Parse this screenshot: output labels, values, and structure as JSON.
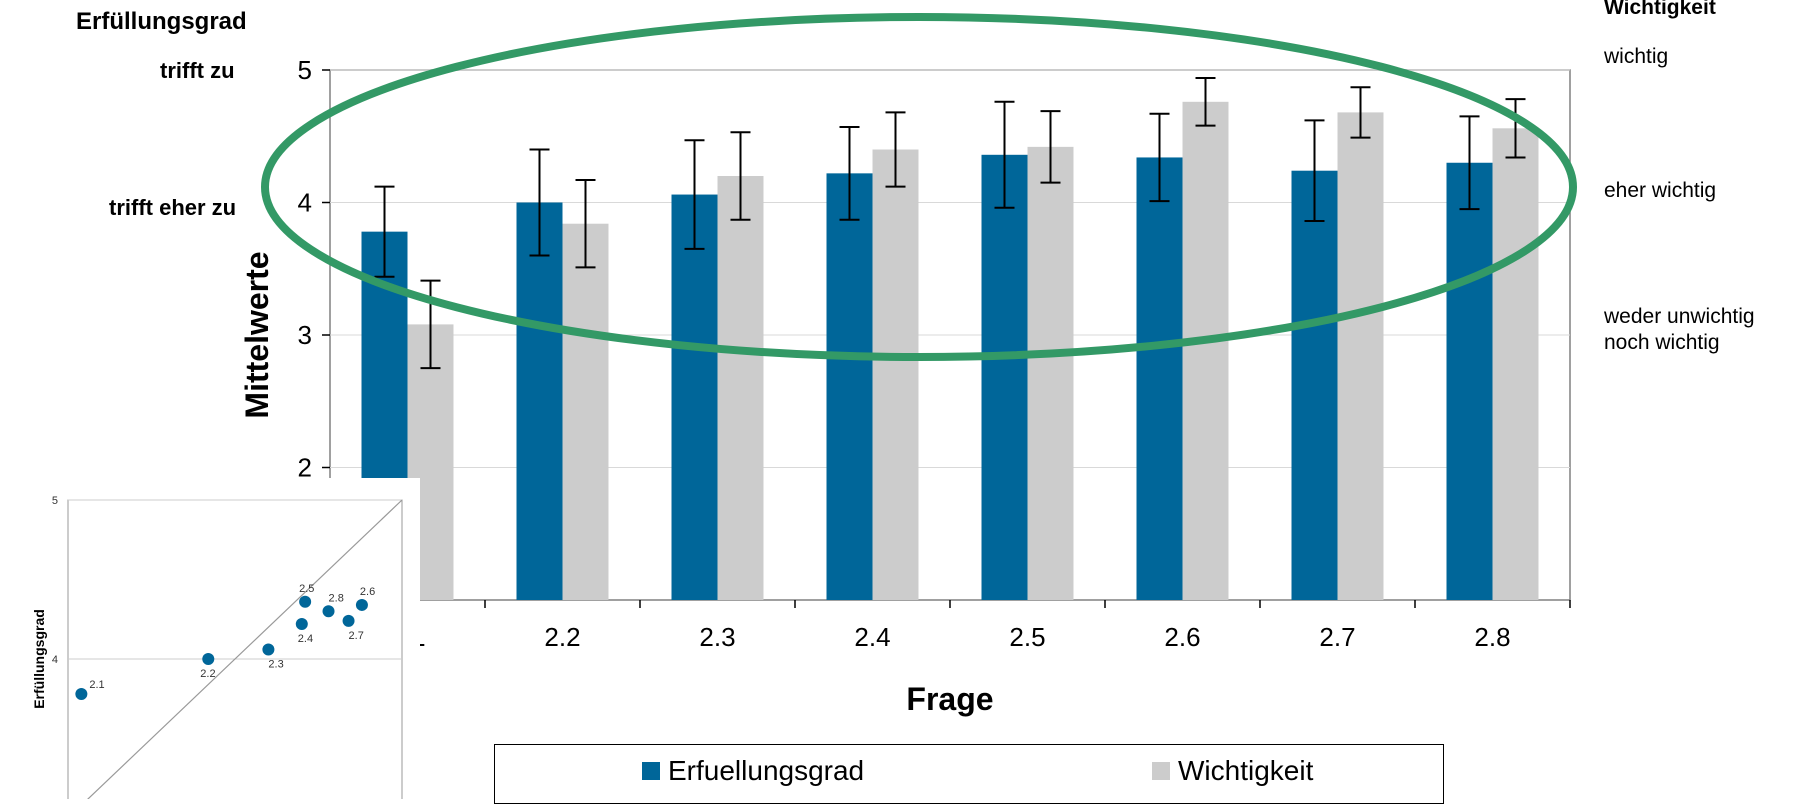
{
  "chart_data": [
    {
      "type": "bar",
      "title": "",
      "xlabel": "Frage",
      "ylabel": "Mittelwerte",
      "ylim": [
        1,
        5
      ],
      "yticks": [
        2,
        3,
        4,
        5
      ],
      "categories": [
        "2.1",
        "2.2",
        "2.3",
        "2.4",
        "2.5",
        "2.6",
        "2.7",
        "2.8"
      ],
      "series": [
        {
          "name": "Erfuellungsgrad",
          "color": "#006699",
          "values": [
            3.78,
            4.0,
            4.06,
            4.22,
            4.36,
            4.34,
            4.24,
            4.3
          ],
          "error": [
            0.34,
            0.4,
            0.41,
            0.35,
            0.4,
            0.33,
            0.38,
            0.35
          ]
        },
        {
          "name": "Wichtigkeit",
          "color": "#cccccc",
          "values": [
            3.08,
            3.84,
            4.2,
            4.4,
            4.42,
            4.76,
            4.68,
            4.56
          ],
          "error": [
            0.33,
            0.33,
            0.33,
            0.28,
            0.27,
            0.18,
            0.19,
            0.22
          ]
        }
      ],
      "grid": true,
      "legend_position": "bottom",
      "highlight_ellipse": {
        "color": "#339966"
      },
      "left_annotation": {
        "title": "Erfüllungsgrad",
        "levels": [
          {
            "label": "trifft zu",
            "value": 5
          },
          {
            "label": "trifft eher zu",
            "value": 4
          }
        ]
      },
      "right_annotation": {
        "title": "Wichtigkeit",
        "levels": [
          {
            "label": "wichtig",
            "value": 5
          },
          {
            "label": "eher wichtig",
            "value": 4
          },
          {
            "label": "weder unwichtig\nnoch wichtig",
            "value": 3
          }
        ]
      }
    },
    {
      "type": "scatter",
      "xlabel": "",
      "ylabel": "Erfüllungsgrad",
      "xlim": [
        3,
        5
      ],
      "ylim": [
        3,
        5
      ],
      "yticks": [
        4,
        5
      ],
      "diagonal": true,
      "point_color": "#006699",
      "points": [
        {
          "label": "2.1",
          "x": 3.08,
          "y": 3.78
        },
        {
          "label": "2.2",
          "x": 3.84,
          "y": 4.0
        },
        {
          "label": "2.3",
          "x": 4.2,
          "y": 4.06
        },
        {
          "label": "2.4",
          "x": 4.4,
          "y": 4.22
        },
        {
          "label": "2.5",
          "x": 4.42,
          "y": 4.36
        },
        {
          "label": "2.6",
          "x": 4.76,
          "y": 4.34
        },
        {
          "label": "2.7",
          "x": 4.68,
          "y": 4.24
        },
        {
          "label": "2.8",
          "x": 4.56,
          "y": 4.3
        }
      ]
    }
  ]
}
